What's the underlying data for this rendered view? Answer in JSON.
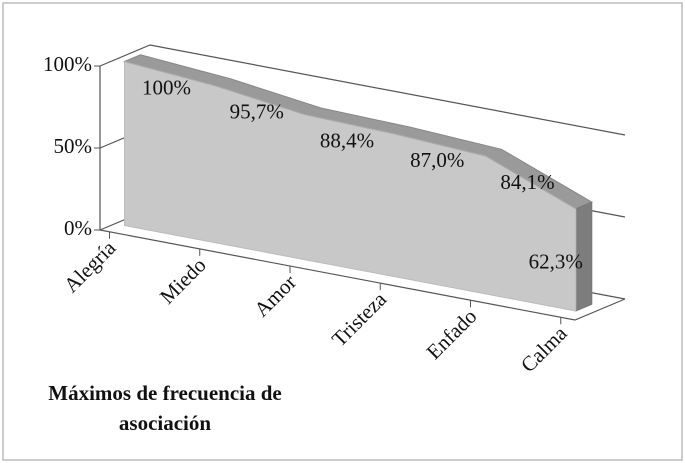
{
  "chart_data": {
    "type": "line3d",
    "title": "Máximos de frecuencia de asociación",
    "categories": [
      "Alegría",
      "Miedo",
      "Amor",
      "Tristeza",
      "Enfado",
      "Calma"
    ],
    "values": [
      100,
      95.7,
      88.4,
      87.0,
      84.1,
      62.3
    ],
    "value_labels": [
      "100%",
      "95,7%",
      "88,4%",
      "87,0%",
      "84,1%",
      "62,3%"
    ],
    "color": "#c8c8c8",
    "ylim": [
      0,
      100
    ],
    "yticks": [
      {
        "value": 0,
        "label": "0%"
      },
      {
        "value": 50,
        "label": "50%"
      },
      {
        "value": 100,
        "label": "100%"
      }
    ],
    "grid": true
  }
}
